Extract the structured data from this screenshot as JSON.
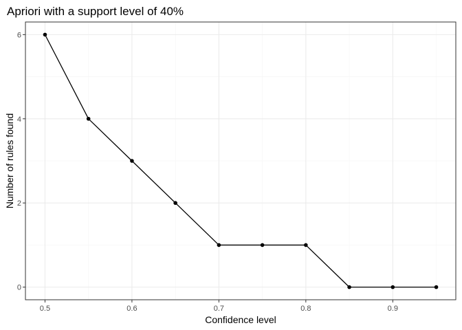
{
  "chart_data": {
    "type": "line",
    "title": "Apriori with a support level of 40%",
    "xlabel": "Confidence level",
    "ylabel": "Number of rules found",
    "x": [
      0.5,
      0.55,
      0.6,
      0.65,
      0.7,
      0.75,
      0.8,
      0.85,
      0.9,
      0.95
    ],
    "y": [
      6,
      4,
      3,
      2,
      1,
      1,
      1,
      0,
      0,
      0
    ],
    "xticks": [
      "0.5",
      "0.6",
      "0.7",
      "0.8",
      "0.9"
    ],
    "yticks": [
      "0",
      "2",
      "4",
      "6"
    ],
    "xlim": [
      0.4775,
      0.9725
    ],
    "ylim": [
      -0.3,
      6.3
    ],
    "grid": true,
    "legend": "none",
    "colors": {
      "line": "#000000",
      "point": "#000000",
      "grid_major": "#ebebeb",
      "grid_minor": "#f5f5f5",
      "border": "#333333"
    }
  }
}
